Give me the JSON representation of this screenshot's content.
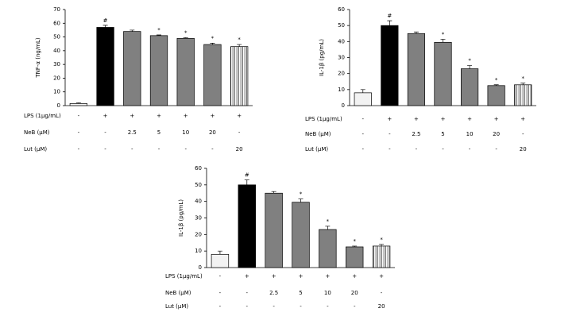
{
  "chart_data": [
    {
      "type": "bar",
      "ylabel": "TNF-α (ng/mL)",
      "ylim": [
        0,
        70
      ],
      "yticks": [
        0,
        10,
        20,
        30,
        40,
        50,
        60,
        70
      ],
      "values": [
        1.5,
        57,
        54,
        51,
        49,
        44.5,
        43
      ],
      "errors": [
        0.5,
        1.5,
        1,
        0.5,
        0.5,
        1,
        1.5
      ],
      "annotations": [
        null,
        "#",
        null,
        "*",
        "*",
        "*",
        "*"
      ],
      "colors": [
        "#f2f2f2",
        "#000000",
        "#808080",
        "#808080",
        "#808080",
        "#808080",
        "#ffffff"
      ],
      "hatches": [
        null,
        null,
        null,
        null,
        null,
        null,
        "vertical"
      ],
      "conditions": [
        {
          "label": "LPS (1μg/mL)",
          "cells": [
            "-",
            "+",
            "+",
            "+",
            "+",
            "+",
            "+"
          ]
        },
        {
          "label": "NeB (μM)",
          "cells": [
            "-",
            "-",
            "2.5",
            "5",
            "10",
            "20",
            "-"
          ]
        },
        {
          "label": "Lut (μM)",
          "cells": [
            "-",
            "-",
            "-",
            "-",
            "-",
            "-",
            "20"
          ]
        }
      ]
    },
    {
      "type": "bar",
      "ylabel": "IL-1β (pg/mL)",
      "ylim": [
        0,
        60
      ],
      "yticks": [
        0,
        10,
        20,
        30,
        40,
        50,
        60
      ],
      "values": [
        8,
        50,
        45,
        39.5,
        23,
        12.5,
        13
      ],
      "errors": [
        2,
        3,
        1,
        2,
        2,
        0.5,
        1
      ],
      "annotations": [
        null,
        "#",
        null,
        "*",
        "*",
        "*",
        "*"
      ],
      "colors": [
        "#f2f2f2",
        "#000000",
        "#808080",
        "#808080",
        "#808080",
        "#808080",
        "#ffffff"
      ],
      "hatches": [
        null,
        null,
        null,
        null,
        null,
        null,
        "vertical"
      ],
      "conditions": [
        {
          "label": "LPS (1μg/mL)",
          "cells": [
            "-",
            "+",
            "+",
            "+",
            "+",
            "+",
            "+"
          ]
        },
        {
          "label": "NeB (μM)",
          "cells": [
            "-",
            "-",
            "2.5",
            "5",
            "10",
            "20",
            "-"
          ]
        },
        {
          "label": "Lut (μM)",
          "cells": [
            "-",
            "-",
            "-",
            "-",
            "-",
            "-",
            "20"
          ]
        }
      ]
    },
    {
      "type": "bar",
      "ylabel": "IL-1β (pg/mL)",
      "ylim": [
        0,
        60
      ],
      "yticks": [
        0,
        10,
        20,
        30,
        40,
        50,
        60
      ],
      "values": [
        8,
        50,
        45,
        39.5,
        23,
        12.5,
        13
      ],
      "errors": [
        2,
        3,
        1,
        2,
        2,
        0.5,
        1
      ],
      "annotations": [
        null,
        "#",
        null,
        "*",
        "*",
        "*",
        "*"
      ],
      "colors": [
        "#f2f2f2",
        "#000000",
        "#808080",
        "#808080",
        "#808080",
        "#808080",
        "#ffffff"
      ],
      "hatches": [
        null,
        null,
        null,
        null,
        null,
        null,
        "vertical"
      ],
      "conditions": [
        {
          "label": "LPS (1μg/mL)",
          "cells": [
            "-",
            "+",
            "+",
            "+",
            "+",
            "+",
            "+"
          ]
        },
        {
          "label": "NeB (μM)",
          "cells": [
            "-",
            "-",
            "2.5",
            "5",
            "10",
            "20",
            "-"
          ]
        },
        {
          "label": "Lut (μM)",
          "cells": [
            "-",
            "-",
            "-",
            "-",
            "-",
            "-",
            "20"
          ]
        }
      ]
    }
  ]
}
